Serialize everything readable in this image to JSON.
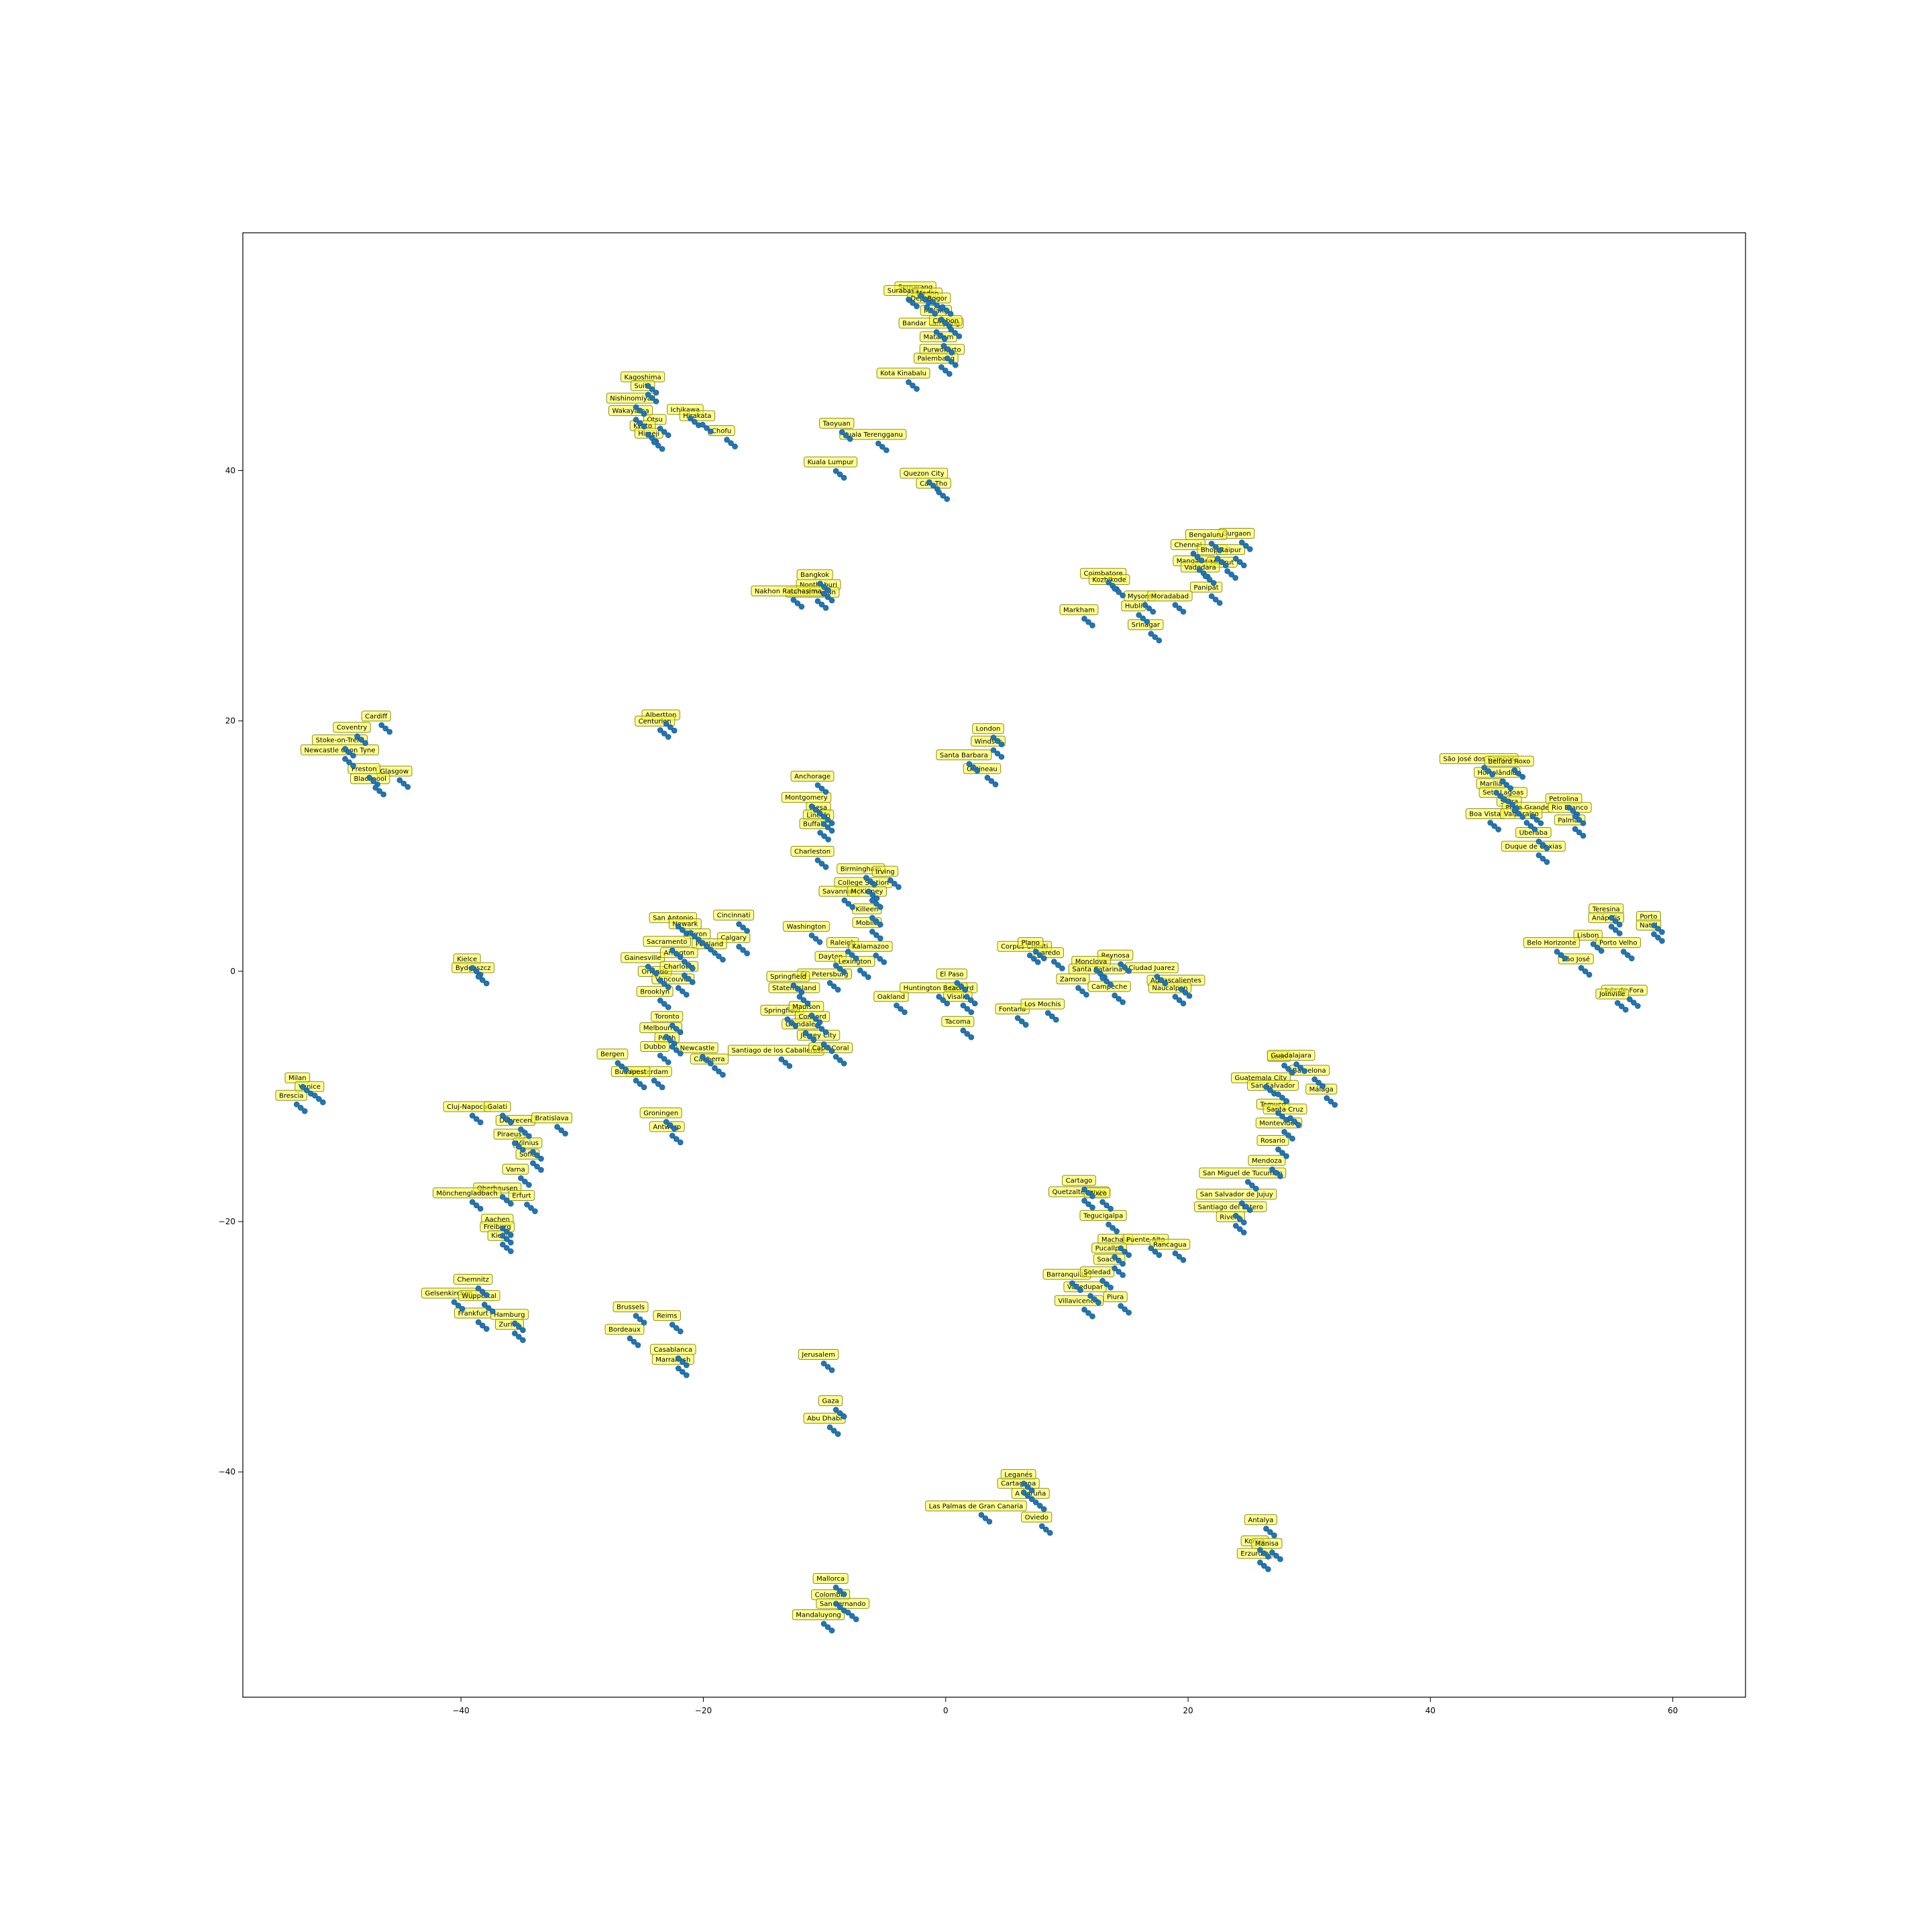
{
  "chart_data": {
    "type": "scatter",
    "title": "",
    "xlabel": "",
    "ylabel": "",
    "xlim": [
      -58,
      66
    ],
    "ylim": [
      -58,
      59
    ],
    "xticks": [
      -40,
      -20,
      0,
      20,
      40,
      60
    ],
    "yticks": [
      -40,
      -20,
      0,
      20,
      40
    ],
    "grid": false,
    "colors": {
      "marker": "#1f77b4",
      "label_bg": "#ffff33",
      "axes": "#000000"
    },
    "points": [
      {
        "label": "Semarang",
        "x": -2.5,
        "y": 54.5
      },
      {
        "label": "Surabaya",
        "x": -3.5,
        "y": 54.2
      },
      {
        "label": "Medan",
        "x": -1.5,
        "y": 54.0
      },
      {
        "label": "Depok",
        "x": -2.0,
        "y": 53.6
      },
      {
        "label": "Bogor",
        "x": -0.7,
        "y": 53.6
      },
      {
        "label": "Bandar Lampung",
        "x": -1.2,
        "y": 51.6
      },
      {
        "label": "Malang",
        "x": -0.8,
        "y": 52.6
      },
      {
        "label": "Cirebon",
        "x": 0.0,
        "y": 51.8
      },
      {
        "label": "Mataram",
        "x": -0.6,
        "y": 50.5
      },
      {
        "label": "Purwokerto",
        "x": -0.3,
        "y": 49.5
      },
      {
        "label": "Palembang",
        "x": -0.8,
        "y": 48.8
      },
      {
        "label": "Kota Kinabalu",
        "x": -3.5,
        "y": 47.6
      },
      {
        "label": "Kagoshima",
        "x": -25.0,
        "y": 47.3
      },
      {
        "label": "Suita",
        "x": -25.0,
        "y": 46.6
      },
      {
        "label": "Nishinomiya",
        "x": -26.0,
        "y": 45.6
      },
      {
        "label": "Wakayama",
        "x": -26.0,
        "y": 44.6
      },
      {
        "label": "Ichikawa",
        "x": -21.5,
        "y": 44.7
      },
      {
        "label": "Hirakata",
        "x": -20.5,
        "y": 44.2
      },
      {
        "label": "Otsu",
        "x": -24.0,
        "y": 43.9
      },
      {
        "label": "Kyoto",
        "x": -25.0,
        "y": 43.4
      },
      {
        "label": "Himeji",
        "x": -24.5,
        "y": 42.8
      },
      {
        "label": "Chofu",
        "x": -18.5,
        "y": 43.0
      },
      {
        "label": "Taoyuan",
        "x": -9.0,
        "y": 43.6
      },
      {
        "label": "Kuala Terengganu",
        "x": -6.0,
        "y": 42.7
      },
      {
        "label": "Kuala Lumpur",
        "x": -9.5,
        "y": 40.5
      },
      {
        "label": "Quezon City",
        "x": -1.8,
        "y": 39.6
      },
      {
        "label": "Can Tho",
        "x": -1.0,
        "y": 38.8
      },
      {
        "label": "Bangkok",
        "x": -10.8,
        "y": 31.5
      },
      {
        "label": "Nonthaburi",
        "x": -10.5,
        "y": 30.7
      },
      {
        "label": "Samut Prakan",
        "x": -11.0,
        "y": 30.1
      },
      {
        "label": "Nakhon Ratchasima",
        "x": -13.0,
        "y": 30.2
      },
      {
        "label": "Gurgaon",
        "x": 24.0,
        "y": 34.8
      },
      {
        "label": "Bengaluru",
        "x": 21.5,
        "y": 34.7
      },
      {
        "label": "Chennai",
        "x": 20.0,
        "y": 33.9
      },
      {
        "label": "Bhopal",
        "x": 22.0,
        "y": 33.5
      },
      {
        "label": "Raipur",
        "x": 23.5,
        "y": 33.5
      },
      {
        "label": "Mangalore",
        "x": 20.5,
        "y": 32.6
      },
      {
        "label": "Meerut",
        "x": 22.8,
        "y": 32.5
      },
      {
        "label": "Vadodara",
        "x": 21.0,
        "y": 32.1
      },
      {
        "label": "Coimbatore",
        "x": 13.0,
        "y": 31.6
      },
      {
        "label": "Kozhikode",
        "x": 13.5,
        "y": 31.1
      },
      {
        "label": "Mysore",
        "x": 16.0,
        "y": 29.8
      },
      {
        "label": "Moradabad",
        "x": 18.5,
        "y": 29.8
      },
      {
        "label": "Panipat",
        "x": 21.5,
        "y": 30.5
      },
      {
        "label": "Hubli",
        "x": 15.5,
        "y": 29.0
      },
      {
        "label": "Markham",
        "x": 11.0,
        "y": 28.7
      },
      {
        "label": "Srinagar",
        "x": 16.5,
        "y": 27.5
      },
      {
        "label": "Albertton",
        "x": -23.5,
        "y": 20.3
      },
      {
        "label": "Centurion",
        "x": -24.0,
        "y": 19.8
      },
      {
        "label": "Cardiff",
        "x": -47.0,
        "y": 20.2
      },
      {
        "label": "Coventry",
        "x": -49.0,
        "y": 19.3
      },
      {
        "label": "Stoke-on-Trent",
        "x": -50.0,
        "y": 18.3
      },
      {
        "label": "Newcastle upon Tyne",
        "x": -50.0,
        "y": 17.5
      },
      {
        "label": "Glasgow",
        "x": -45.5,
        "y": 15.8
      },
      {
        "label": "Preston",
        "x": -48.0,
        "y": 16.0
      },
      {
        "label": "Blackpool",
        "x": -47.5,
        "y": 15.2
      },
      {
        "label": "London",
        "x": 3.5,
        "y": 19.2
      },
      {
        "label": "Windsor",
        "x": 3.5,
        "y": 18.2
      },
      {
        "label": "Santa Barbara",
        "x": 1.5,
        "y": 17.1
      },
      {
        "label": "Gatineau",
        "x": 3.0,
        "y": 16.0
      },
      {
        "label": "Anchorage",
        "x": -11.0,
        "y": 15.4
      },
      {
        "label": "Montgomery",
        "x": -11.5,
        "y": 13.7
      },
      {
        "label": "Mesa",
        "x": -10.5,
        "y": 12.9
      },
      {
        "label": "Lincoln",
        "x": -10.5,
        "y": 12.3
      },
      {
        "label": "Buffalo",
        "x": -10.8,
        "y": 11.6
      },
      {
        "label": "Charleston",
        "x": -11.0,
        "y": 9.4
      },
      {
        "label": "Birmingham",
        "x": -7.0,
        "y": 8.0
      },
      {
        "label": "Irving",
        "x": -5.0,
        "y": 7.8
      },
      {
        "label": "College Station",
        "x": -6.8,
        "y": 6.9
      },
      {
        "label": "Savannah",
        "x": -8.8,
        "y": 6.2
      },
      {
        "label": "McKinney",
        "x": -6.5,
        "y": 6.2
      },
      {
        "label": "Killeen",
        "x": -6.5,
        "y": 4.8
      },
      {
        "label": "Mobile",
        "x": -6.5,
        "y": 3.7
      },
      {
        "label": "Washington",
        "x": -11.5,
        "y": 3.4
      },
      {
        "label": "Raleigh",
        "x": -8.5,
        "y": 2.1
      },
      {
        "label": "Kalamazoo",
        "x": -6.2,
        "y": 1.8
      },
      {
        "label": "Dayton",
        "x": -9.5,
        "y": 1.0
      },
      {
        "label": "Lexington",
        "x": -7.5,
        "y": 0.6
      },
      {
        "label": "St. Petersburg",
        "x": -10.0,
        "y": -0.4
      },
      {
        "label": "Springfield",
        "x": -13.0,
        "y": -0.6
      },
      {
        "label": "Staten Island",
        "x": -12.5,
        "y": -1.5
      },
      {
        "label": "Oakland",
        "x": -4.5,
        "y": -2.2
      },
      {
        "label": "Springfield",
        "x": -13.5,
        "y": -3.3
      },
      {
        "label": "Concord",
        "x": -11.0,
        "y": -3.8
      },
      {
        "label": "Glendale",
        "x": -12.0,
        "y": -4.4
      },
      {
        "label": "Madison",
        "x": -11.5,
        "y": -3.0
      },
      {
        "label": "Jersey City",
        "x": -10.5,
        "y": -5.3
      },
      {
        "label": "Santiago de los Caballeros",
        "x": -14.0,
        "y": -6.5
      },
      {
        "label": "Cape Coral",
        "x": -9.5,
        "y": -6.3
      },
      {
        "label": "San Antonio",
        "x": -22.5,
        "y": 4.1
      },
      {
        "label": "Cincinnati",
        "x": -17.5,
        "y": 4.3
      },
      {
        "label": "Newark",
        "x": -21.5,
        "y": 3.6
      },
      {
        "label": "Akron",
        "x": -20.5,
        "y": 2.8
      },
      {
        "label": "Calgary",
        "x": -17.5,
        "y": 2.5
      },
      {
        "label": "Sacramento",
        "x": -23.0,
        "y": 2.2
      },
      {
        "label": "Portland",
        "x": -19.5,
        "y": 2.0
      },
      {
        "label": "Gainesville",
        "x": -25.0,
        "y": 0.9
      },
      {
        "label": "Arlington",
        "x": -22.0,
        "y": 1.3
      },
      {
        "label": "Orlando",
        "x": -24.0,
        "y": -0.2
      },
      {
        "label": "Charlotte",
        "x": -22.0,
        "y": 0.2
      },
      {
        "label": "Vancouver",
        "x": -22.5,
        "y": -0.8
      },
      {
        "label": "Brooklyn",
        "x": -24.0,
        "y": -1.8
      },
      {
        "label": "Toronto",
        "x": -23.0,
        "y": -3.8
      },
      {
        "label": "Melbourne",
        "x": -23.5,
        "y": -4.7
      },
      {
        "label": "Perth",
        "x": -23.0,
        "y": -5.5
      },
      {
        "label": "Newcastle",
        "x": -20.5,
        "y": -6.3
      },
      {
        "label": "Canberra",
        "x": -19.5,
        "y": -7.2
      },
      {
        "label": "Dubbo",
        "x": -24.0,
        "y": -6.2
      },
      {
        "label": "Bergen",
        "x": -27.5,
        "y": -6.8
      },
      {
        "label": "Amsterdam",
        "x": -24.5,
        "y": -8.2
      },
      {
        "label": "Budapest",
        "x": -26.0,
        "y": -8.2
      },
      {
        "label": "Groningen",
        "x": -23.5,
        "y": -11.5
      },
      {
        "label": "Antwerp",
        "x": -23.0,
        "y": -12.6
      },
      {
        "label": "El Paso",
        "x": 0.5,
        "y": -0.4
      },
      {
        "label": "Oxnard",
        "x": 1.3,
        "y": -1.5
      },
      {
        "label": "Huntington Beach",
        "x": -1.0,
        "y": -1.5
      },
      {
        "label": "Visalia",
        "x": 1.0,
        "y": -2.2
      },
      {
        "label": "Tacoma",
        "x": 1.0,
        "y": -4.2
      },
      {
        "label": "Fontana",
        "x": 5.5,
        "y": -3.2
      },
      {
        "label": "Corpus Christi",
        "x": 6.5,
        "y": 1.8
      },
      {
        "label": "Plano",
        "x": 7.0,
        "y": 2.1
      },
      {
        "label": "Laredo",
        "x": 8.5,
        "y": 1.3
      },
      {
        "label": "Reynosa",
        "x": 14.0,
        "y": 1.1
      },
      {
        "label": "Monclova",
        "x": 12.0,
        "y": 0.6
      },
      {
        "label": "Santa Catarina",
        "x": 12.5,
        "y": 0.0
      },
      {
        "label": "Ciudad Juarez",
        "x": 17.0,
        "y": 0.1
      },
      {
        "label": "Zamora",
        "x": 10.5,
        "y": -0.8
      },
      {
        "label": "Campeche",
        "x": 13.5,
        "y": -1.4
      },
      {
        "label": "Aguascalientes",
        "x": 19.0,
        "y": -0.9
      },
      {
        "label": "Naucalpan",
        "x": 18.5,
        "y": -1.5
      },
      {
        "label": "Los Mochis",
        "x": 8.0,
        "y": -2.8
      },
      {
        "label": "León",
        "x": 27.5,
        "y": -7.0
      },
      {
        "label": "Guadalajara",
        "x": 28.5,
        "y": -6.9
      },
      {
        "label": "Barcelona",
        "x": 30.0,
        "y": -8.1
      },
      {
        "label": "Guatemala City",
        "x": 26.0,
        "y": -8.7
      },
      {
        "label": "San Salvador",
        "x": 27.0,
        "y": -9.3
      },
      {
        "label": "Málaga",
        "x": 31.0,
        "y": -9.6
      },
      {
        "label": "Temuco",
        "x": 27.0,
        "y": -10.8
      },
      {
        "label": "Santa Cruz",
        "x": 28.0,
        "y": -11.2
      },
      {
        "label": "Montevideo",
        "x": 27.5,
        "y": -12.3
      },
      {
        "label": "Rosario",
        "x": 27.0,
        "y": -13.7
      },
      {
        "label": "Mendoza",
        "x": 26.5,
        "y": -15.3
      },
      {
        "label": "San Miguel de Tucumán",
        "x": 24.5,
        "y": -16.3
      },
      {
        "label": "San Salvador de Jujuy",
        "x": 24.0,
        "y": -18.0
      },
      {
        "label": "Santiago del Estero",
        "x": 23.5,
        "y": -19.0
      },
      {
        "label": "Rivera",
        "x": 23.5,
        "y": -19.8
      },
      {
        "label": "Cartago",
        "x": 11.0,
        "y": -16.9
      },
      {
        "label": "Quetzaltenango",
        "x": 11.0,
        "y": -17.8
      },
      {
        "label": "Mixco",
        "x": 12.5,
        "y": -17.9
      },
      {
        "label": "Tegucigalpa",
        "x": 13.0,
        "y": -19.7
      },
      {
        "label": "Machala",
        "x": 14.0,
        "y": -21.6
      },
      {
        "label": "Puente Alto",
        "x": 16.5,
        "y": -21.6
      },
      {
        "label": "Pucallpa",
        "x": 13.5,
        "y": -22.3
      },
      {
        "label": "Rancagua",
        "x": 18.5,
        "y": -22.0
      },
      {
        "label": "Soacha",
        "x": 13.5,
        "y": -23.2
      },
      {
        "label": "Barranquilla",
        "x": 10.0,
        "y": -24.4
      },
      {
        "label": "Soledad",
        "x": 12.5,
        "y": -24.2
      },
      {
        "label": "Valledupar",
        "x": 11.5,
        "y": -25.4
      },
      {
        "label": "Villavicencio",
        "x": 11.0,
        "y": -26.5
      },
      {
        "label": "Piura",
        "x": 14.0,
        "y": -26.2
      },
      {
        "label": "São José dos Campos",
        "x": 44.0,
        "y": 16.8
      },
      {
        "label": "Belford Roxo",
        "x": 46.5,
        "y": 16.6
      },
      {
        "label": "Hortolândia",
        "x": 45.5,
        "y": 15.7
      },
      {
        "label": "Marília",
        "x": 45.0,
        "y": 14.8
      },
      {
        "label": "Sete Lagoas",
        "x": 46.0,
        "y": 14.1
      },
      {
        "label": "Serra",
        "x": 46.5,
        "y": 13.4
      },
      {
        "label": "Praia Grande",
        "x": 48.0,
        "y": 12.9
      },
      {
        "label": "Petrolina",
        "x": 51.0,
        "y": 13.6
      },
      {
        "label": "Rio Branco",
        "x": 51.5,
        "y": 12.9
      },
      {
        "label": "Boa Vista",
        "x": 44.5,
        "y": 12.4
      },
      {
        "label": "Valparaíso",
        "x": 47.5,
        "y": 12.4
      },
      {
        "label": "Palmas",
        "x": 51.5,
        "y": 11.9
      },
      {
        "label": "Uberaba",
        "x": 48.5,
        "y": 10.9
      },
      {
        "label": "Duque de Caxias",
        "x": 48.5,
        "y": 9.8
      },
      {
        "label": "Teresina",
        "x": 54.5,
        "y": 4.8
      },
      {
        "label": "Anápolis",
        "x": 54.5,
        "y": 4.1
      },
      {
        "label": "Porto",
        "x": 58.0,
        "y": 4.2
      },
      {
        "label": "Natal",
        "x": 58.0,
        "y": 3.5
      },
      {
        "label": "Lisbon",
        "x": 53.0,
        "y": 2.7
      },
      {
        "label": "Belo Horizonte",
        "x": 50.0,
        "y": 2.1
      },
      {
        "label": "Porto Velho",
        "x": 55.5,
        "y": 2.1
      },
      {
        "label": "São José",
        "x": 52.0,
        "y": 0.8
      },
      {
        "label": "Juiz de Fora",
        "x": 56.0,
        "y": -1.7
      },
      {
        "label": "Joinville",
        "x": 55.0,
        "y": -2.0
      },
      {
        "label": "Kielce",
        "x": -39.5,
        "y": 0.8
      },
      {
        "label": "Bydgoszcz",
        "x": -39.0,
        "y": 0.1
      },
      {
        "label": "Milan",
        "x": -53.5,
        "y": -8.7
      },
      {
        "label": "Venice",
        "x": -52.5,
        "y": -9.4
      },
      {
        "label": "Brescia",
        "x": -54.0,
        "y": -10.1
      },
      {
        "label": "Cluj-Napoca",
        "x": -39.5,
        "y": -11.0
      },
      {
        "label": "Galati",
        "x": -37.0,
        "y": -11.0
      },
      {
        "label": "Debrecen",
        "x": -35.5,
        "y": -12.1
      },
      {
        "label": "Bratislava",
        "x": -32.5,
        "y": -11.9
      },
      {
        "label": "Piraeus",
        "x": -36.0,
        "y": -13.2
      },
      {
        "label": "Vilnius",
        "x": -34.5,
        "y": -13.9
      },
      {
        "label": "Sofia",
        "x": -34.5,
        "y": -14.8
      },
      {
        "label": "Varna",
        "x": -35.5,
        "y": -16.0
      },
      {
        "label": "Oberhausen",
        "x": -37.0,
        "y": -17.5
      },
      {
        "label": "Mönchengladbach",
        "x": -39.5,
        "y": -17.9
      },
      {
        "label": "Erfurt",
        "x": -35.0,
        "y": -18.1
      },
      {
        "label": "Aachen",
        "x": -37.0,
        "y": -20.0
      },
      {
        "label": "Freiburg",
        "x": -37.0,
        "y": -20.6
      },
      {
        "label": "Kiel",
        "x": -37.0,
        "y": -21.3
      },
      {
        "label": "Chemnitz",
        "x": -39.0,
        "y": -24.8
      },
      {
        "label": "Gelsenkirchen",
        "x": -41.0,
        "y": -25.9
      },
      {
        "label": "Wuppertal",
        "x": -38.5,
        "y": -26.1
      },
      {
        "label": "Frankfurt",
        "x": -39.0,
        "y": -27.5
      },
      {
        "label": "Hamburg",
        "x": -36.0,
        "y": -27.6
      },
      {
        "label": "Zurich",
        "x": -36.0,
        "y": -28.4
      },
      {
        "label": "Brussels",
        "x": -26.0,
        "y": -27.0
      },
      {
        "label": "Reims",
        "x": -23.0,
        "y": -27.7
      },
      {
        "label": "Bordeaux",
        "x": -26.5,
        "y": -28.8
      },
      {
        "label": "Casablanca",
        "x": -22.5,
        "y": -30.4
      },
      {
        "label": "Marrakesh",
        "x": -22.5,
        "y": -31.2
      },
      {
        "label": "Jerusalem",
        "x": -10.5,
        "y": -30.8
      },
      {
        "label": "Gaza",
        "x": -9.5,
        "y": -34.5
      },
      {
        "label": "Abu Dhabi",
        "x": -10.0,
        "y": -35.9
      },
      {
        "label": "Leganés",
        "x": 6.0,
        "y": -40.4
      },
      {
        "label": "Cartagena",
        "x": 6.0,
        "y": -41.1
      },
      {
        "label": "A Coruña",
        "x": 7.0,
        "y": -41.9
      },
      {
        "label": "Las Palmas de Gran Canaria",
        "x": 2.5,
        "y": -42.9
      },
      {
        "label": "Oviedo",
        "x": 7.5,
        "y": -43.8
      },
      {
        "label": "Antalya",
        "x": 26.0,
        "y": -44.0
      },
      {
        "label": "Konya",
        "x": 25.5,
        "y": -45.7
      },
      {
        "label": "Manisa",
        "x": 26.5,
        "y": -45.9
      },
      {
        "label": "Erzurum",
        "x": 25.5,
        "y": -46.7
      },
      {
        "label": "Mallorca",
        "x": -9.5,
        "y": -48.7
      },
      {
        "label": "Colombia",
        "x": -9.5,
        "y": -50.0
      },
      {
        "label": "San Fernando",
        "x": -8.5,
        "y": -50.7
      },
      {
        "label": "Mandaluyong",
        "x": -10.5,
        "y": -51.6
      }
    ]
  }
}
